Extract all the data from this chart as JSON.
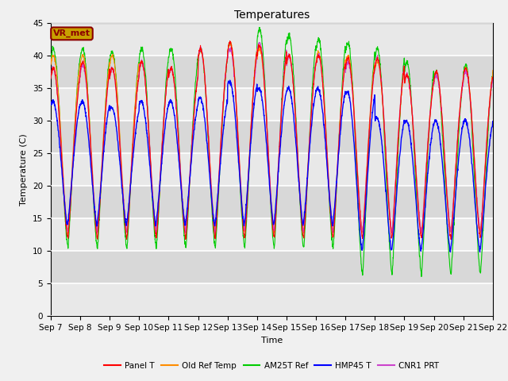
{
  "title": "Temperatures",
  "xlabel": "Time",
  "ylabel": "Temperature (C)",
  "ylim": [
    0,
    45
  ],
  "yticks": [
    0,
    5,
    10,
    15,
    20,
    25,
    30,
    35,
    40,
    45
  ],
  "annotation_text": "VR_met",
  "annotation_color": "#8B0000",
  "annotation_bg": "#C8A000",
  "start_day": 7,
  "end_day": 22,
  "series_colors": {
    "Panel T": "#FF0000",
    "Old Ref Temp": "#FF8C00",
    "AM25T Ref": "#00CC00",
    "HMP45 T": "#0000FF",
    "CNR1 PRT": "#CC44CC"
  },
  "fig_facecolor": "#F0F0F0",
  "plot_bg_light": "#E8E8E8",
  "plot_bg_dark": "#D8D8D8",
  "grid_color": "#FFFFFF",
  "title_fontsize": 10,
  "tick_fontsize": 7.5
}
